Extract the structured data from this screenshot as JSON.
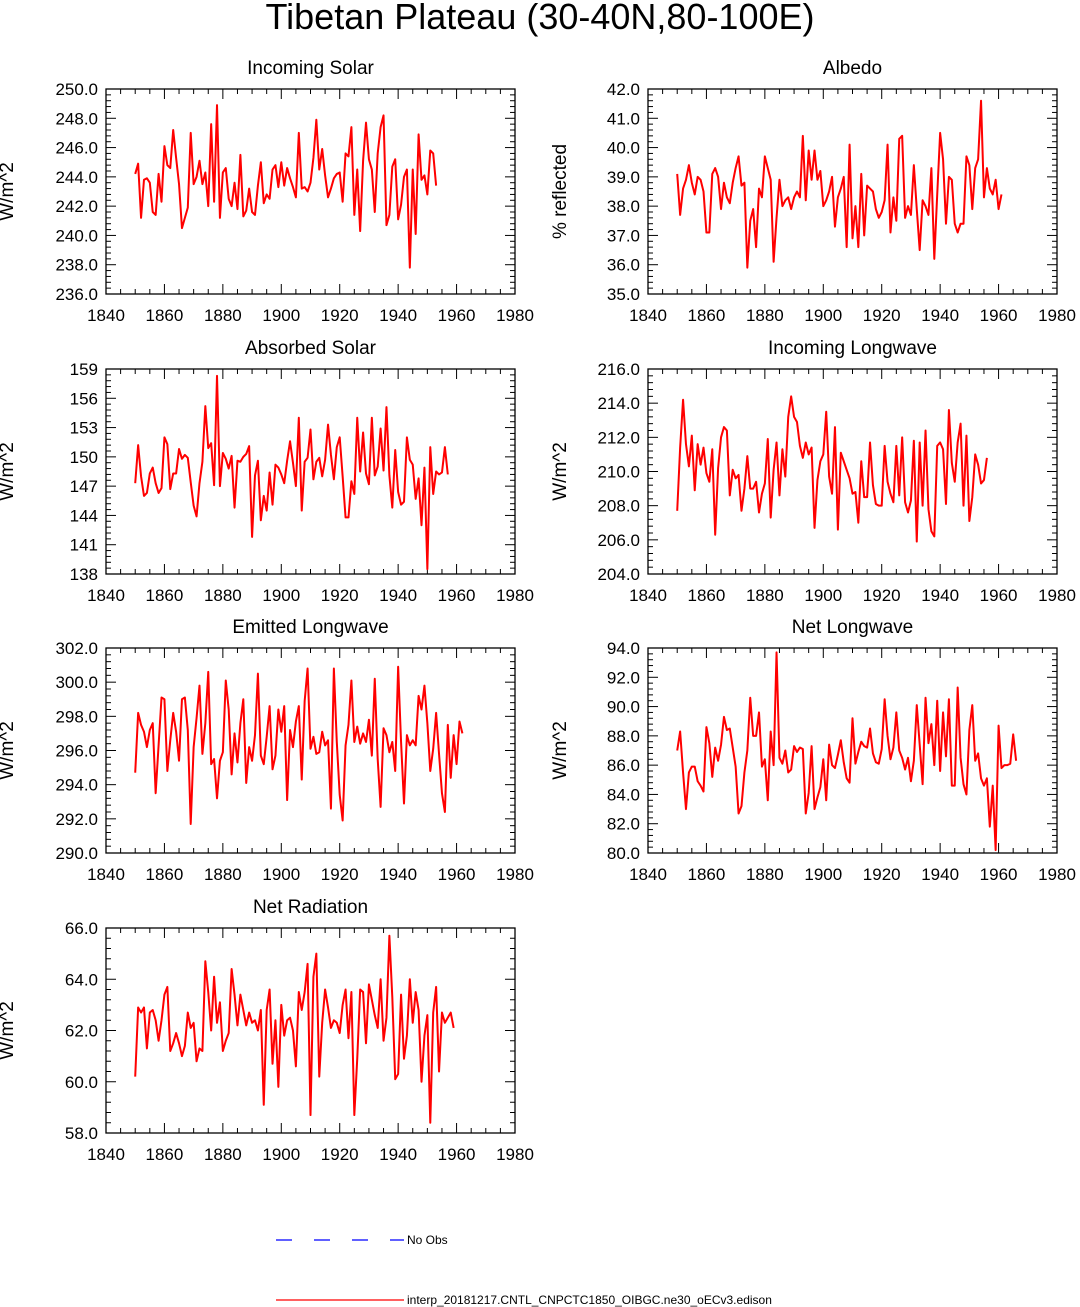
{
  "title": "Tibetan Plateau (30-40N,80-100E)",
  "colors": {
    "model": "#ff0000",
    "obs": "#0000ff"
  },
  "legend": {
    "obs_label": "No Obs",
    "model_label": "interp_20181217.CNTL_CNPCTC1850_OIBGC.ne30_oECv3.edison"
  },
  "chart_data": [
    {
      "type": "line",
      "title": "Incoming Solar",
      "ylabel": "W/m^2",
      "xlim": [
        1840,
        1980
      ],
      "ylim": [
        236,
        250
      ],
      "xticks": [
        1840,
        1860,
        1880,
        1900,
        1920,
        1940,
        1960,
        1980
      ],
      "yticks": [
        236,
        238,
        240,
        242,
        244,
        246,
        248,
        250
      ],
      "ydecimals": 1,
      "x_start": 1850,
      "series": [
        {
          "values": [
            244.2,
            244.9,
            241.2,
            243.8,
            243.9,
            243.6,
            241.6,
            241.4,
            244.2,
            242.3,
            246.1,
            244.8,
            244.6,
            247.2,
            245.3,
            243.5,
            240.5,
            241.2,
            241.9,
            247.0,
            243.5,
            244.0,
            245.1,
            243.5,
            244.3,
            242.0,
            247.6,
            242.3,
            248.9,
            241.2,
            244.3,
            244.6,
            242.5,
            242.0,
            243.6,
            241.8,
            245.5,
            241.3,
            241.7,
            243.2,
            241.6,
            241.4,
            243.4,
            245.0,
            242.2,
            242.8,
            242.5,
            244.5,
            244.8,
            243.3,
            245.0,
            243.4,
            244.6,
            243.9,
            243.3,
            242.6,
            247.0,
            243.2,
            243.3,
            243.0,
            243.6,
            245.3,
            247.9,
            244.5,
            245.9,
            244.1,
            242.6,
            243.2,
            243.9,
            244.2,
            244.3,
            242.3,
            245.6,
            245.4,
            247.4,
            241.4,
            244.5,
            240.3,
            245.1,
            247.7,
            245.2,
            244.5,
            241.6,
            245.6,
            247.4,
            248.2,
            240.7,
            241.4,
            244.7,
            245.2,
            241.1,
            242.1,
            244.0,
            244.5,
            237.8,
            244.5,
            240.1,
            246.9,
            243.8,
            244.1,
            242.8,
            245.8,
            245.6,
            243.4
          ]
        }
      ]
    },
    {
      "type": "line",
      "title": "Albedo",
      "ylabel": "% reflected",
      "xlim": [
        1840,
        1980
      ],
      "ylim": [
        35,
        42
      ],
      "xticks": [
        1840,
        1860,
        1880,
        1900,
        1920,
        1940,
        1960,
        1980
      ],
      "yticks": [
        35,
        36,
        37,
        38,
        39,
        40,
        41,
        42
      ],
      "ydecimals": 1,
      "x_start": 1850,
      "series": [
        {
          "values": [
            39.1,
            37.7,
            38.6,
            38.9,
            39.4,
            38.8,
            38.4,
            39.0,
            38.9,
            38.5,
            37.1,
            37.1,
            39.1,
            39.3,
            39.0,
            37.9,
            38.8,
            38.3,
            38.1,
            38.8,
            39.3,
            39.7,
            38.7,
            38.8,
            35.9,
            37.5,
            37.9,
            36.6,
            38.6,
            38.3,
            39.7,
            39.3,
            38.9,
            36.1,
            37.6,
            38.9,
            38.0,
            38.2,
            38.3,
            37.9,
            38.3,
            38.5,
            38.3,
            40.4,
            38.2,
            39.9,
            38.9,
            39.9,
            38.9,
            39.2,
            38.0,
            38.2,
            38.5,
            39.0,
            37.3,
            38.3,
            38.6,
            39.0,
            36.6,
            40.1,
            36.9,
            38.0,
            36.6,
            39.1,
            37.0,
            38.7,
            38.6,
            38.5,
            37.9,
            37.6,
            37.8,
            38.2,
            40.1,
            37.1,
            38.3,
            37.5,
            40.3,
            40.4,
            37.6,
            38.0,
            37.7,
            39.4,
            37.9,
            36.5,
            38.2,
            38.0,
            37.7,
            39.3,
            36.2,
            38.4,
            40.5,
            39.6,
            37.4,
            39.0,
            38.9,
            37.4,
            37.1,
            37.4,
            37.4,
            39.7,
            39.4,
            37.9,
            39.3,
            39.6,
            41.6,
            38.3,
            39.3,
            38.6,
            38.4,
            38.9,
            37.9,
            38.4
          ]
        }
      ]
    },
    {
      "type": "line",
      "title": "Absorbed Solar",
      "ylabel": "W/m^2",
      "xlim": [
        1840,
        1980
      ],
      "ylim": [
        138,
        159
      ],
      "xticks": [
        1840,
        1860,
        1880,
        1900,
        1920,
        1940,
        1960,
        1980
      ],
      "yticks": [
        138,
        141,
        144,
        147,
        150,
        153,
        156,
        159
      ],
      "ydecimals": 0,
      "x_start": 1850,
      "series": [
        {
          "values": [
            147.3,
            151.2,
            148.0,
            146.0,
            146.3,
            148.3,
            148.9,
            147.3,
            146.3,
            146.8,
            152.0,
            151.3,
            146.7,
            148.3,
            148.3,
            150.8,
            149.8,
            150.2,
            149.9,
            147.4,
            145.0,
            143.9,
            147.3,
            149.5,
            155.2,
            150.9,
            151.4,
            147.1,
            158.3,
            147.0,
            150.4,
            149.8,
            148.8,
            150.1,
            144.8,
            149.6,
            149.5,
            150.0,
            150.3,
            151.1,
            141.8,
            148.1,
            149.6,
            143.5,
            146.0,
            144.5,
            148.4,
            145.1,
            149.2,
            148.9,
            148.2,
            147.3,
            149.6,
            151.6,
            149.4,
            147.0,
            154.0,
            144.5,
            149.5,
            149.9,
            152.8,
            147.7,
            149.5,
            149.9,
            148.0,
            149.7,
            153.3,
            150.2,
            147.7,
            151.0,
            152.0,
            148.0,
            143.8,
            143.8,
            147.5,
            146.2,
            154.0,
            148.5,
            152.5,
            148.3,
            147.2,
            154.0,
            148.1,
            149.0,
            152.9,
            148.6,
            155.1,
            148.1,
            144.8,
            150.7,
            146.4,
            145.1,
            145.4,
            152.0,
            149.7,
            149.2,
            145.7,
            147.8,
            143.0,
            148.9,
            138.5,
            151.0,
            146.2,
            148.5,
            148.2,
            148.4,
            151.0,
            148.2
          ]
        }
      ]
    },
    {
      "type": "line",
      "title": "Incoming Longwave",
      "ylabel": "W/m^2",
      "xlim": [
        1840,
        1980
      ],
      "ylim": [
        204,
        216
      ],
      "xticks": [
        1840,
        1860,
        1880,
        1900,
        1920,
        1940,
        1960,
        1980
      ],
      "yticks": [
        204,
        206,
        208,
        210,
        212,
        214,
        216
      ],
      "ydecimals": 1,
      "x_start": 1850,
      "series": [
        {
          "values": [
            207.7,
            211.4,
            214.2,
            211.6,
            210.3,
            212.1,
            208.9,
            211.6,
            210.4,
            211.4,
            209.9,
            209.4,
            211.3,
            206.3,
            210.2,
            212.0,
            212.6,
            212.4,
            208.6,
            210.1,
            209.6,
            209.8,
            207.7,
            209.0,
            210.9,
            209.0,
            209.0,
            209.4,
            207.6,
            208.7,
            209.3,
            211.9,
            207.3,
            210.1,
            211.7,
            208.6,
            211.3,
            209.7,
            213.2,
            214.4,
            213.2,
            212.9,
            211.5,
            210.8,
            211.7,
            211.0,
            211.4,
            206.7,
            209.5,
            210.6,
            211.0,
            213.5,
            209.7,
            208.7,
            212.6,
            206.6,
            211.1,
            210.6,
            210.1,
            209.6,
            208.7,
            208.8,
            207.0,
            210.6,
            208.5,
            208.5,
            211.7,
            209.2,
            208.1,
            208.0,
            208.0,
            211.5,
            209.4,
            208.7,
            208.2,
            211.5,
            208.6,
            212.0,
            208.2,
            207.6,
            208.3,
            211.8,
            205.9,
            211.7,
            208.0,
            212.4,
            207.8,
            206.5,
            206.2,
            211.5,
            211.7,
            211.3,
            208.1,
            213.6,
            210.5,
            209.4,
            211.7,
            212.8,
            208.0,
            212.1,
            207.1,
            208.5,
            211.0,
            210.4,
            209.3,
            209.5,
            210.8
          ]
        }
      ]
    },
    {
      "type": "line",
      "title": "Emitted Longwave",
      "ylabel": "W/m^2",
      "xlim": [
        1840,
        1980
      ],
      "ylim": [
        290,
        302
      ],
      "xticks": [
        1840,
        1860,
        1880,
        1900,
        1920,
        1940,
        1960,
        1980
      ],
      "yticks": [
        290,
        292,
        294,
        296,
        298,
        300,
        302
      ],
      "ydecimals": 1,
      "x_start": 1850,
      "series": [
        {
          "values": [
            294.7,
            298.2,
            297.5,
            297.1,
            296.2,
            297.2,
            297.6,
            293.5,
            296.3,
            299.1,
            299.0,
            294.8,
            296.6,
            298.2,
            297.1,
            295.4,
            299.0,
            299.1,
            297.2,
            291.7,
            296.2,
            297.9,
            299.8,
            295.8,
            297.6,
            300.6,
            295.2,
            295.5,
            293.2,
            295.4,
            295.9,
            300.1,
            298.4,
            294.6,
            297.0,
            295.3,
            297.6,
            299.0,
            294.1,
            296.2,
            295.4,
            296.9,
            300.5,
            295.7,
            295.2,
            296.8,
            298.6,
            294.9,
            295.7,
            298.4,
            297.1,
            298.6,
            293.1,
            297.2,
            296.2,
            297.7,
            298.6,
            294.3,
            298.9,
            300.8,
            296.1,
            296.8,
            295.8,
            295.9,
            297.1,
            296.3,
            296.6,
            292.6,
            300.8,
            296.5,
            293.4,
            291.9,
            296.3,
            297.5,
            300.1,
            296.5,
            297.4,
            296.4,
            297.0,
            296.5,
            297.8,
            295.7,
            300.2,
            295.5,
            292.7,
            297.3,
            296.9,
            295.9,
            296.5,
            294.8,
            300.9,
            296.5,
            292.9,
            296.9,
            296.3,
            296.6,
            296.3,
            299.2,
            298.4,
            299.8,
            297.6,
            294.8,
            296.1,
            298.2,
            295.8,
            293.5,
            292.4,
            297.5,
            294.4,
            296.9,
            295.2,
            297.7,
            297.0
          ]
        }
      ]
    },
    {
      "type": "line",
      "title": "Net Longwave",
      "ylabel": "W/m^2",
      "xlim": [
        1840,
        1980
      ],
      "ylim": [
        80,
        94
      ],
      "xticks": [
        1840,
        1860,
        1880,
        1900,
        1920,
        1940,
        1960,
        1980
      ],
      "yticks": [
        80,
        82,
        84,
        86,
        88,
        90,
        92,
        94
      ],
      "ydecimals": 1,
      "x_start": 1850,
      "series": [
        {
          "values": [
            87.0,
            88.3,
            85.5,
            83.0,
            85.5,
            85.9,
            85.9,
            84.9,
            84.6,
            84.2,
            88.6,
            87.5,
            85.2,
            87.2,
            86.3,
            87.4,
            89.3,
            88.4,
            88.5,
            87.2,
            85.9,
            82.7,
            83.2,
            85.5,
            87.0,
            90.6,
            88.0,
            88.0,
            89.6,
            85.9,
            86.4,
            83.6,
            88.3,
            86.0,
            93.7,
            86.5,
            86.1,
            87.0,
            85.5,
            85.7,
            87.3,
            86.9,
            87.2,
            87.1,
            82.7,
            84.1,
            87.3,
            83.0,
            83.8,
            84.5,
            86.4,
            83.6,
            87.4,
            86.0,
            85.8,
            86.7,
            87.7,
            86.2,
            85.1,
            84.8,
            89.2,
            86.1,
            86.9,
            87.6,
            87.3,
            87.2,
            88.5,
            86.8,
            86.2,
            86.1,
            87.1,
            90.5,
            88.0,
            86.4,
            87.2,
            89.6,
            87.0,
            86.5,
            85.7,
            86.5,
            84.9,
            86.3,
            90.1,
            87.4,
            84.7,
            90.6,
            87.5,
            88.8,
            86.0,
            90.4,
            85.6,
            89.6,
            86.6,
            90.5,
            84.6,
            84.6,
            91.3,
            86.5,
            84.7,
            84.0,
            88.4,
            90.1,
            86.3,
            86.8,
            85.1,
            84.6,
            85.1,
            81.8,
            84.6,
            80.2,
            88.7,
            85.8,
            86.0,
            86.0,
            86.1,
            88.1,
            86.3
          ]
        }
      ]
    },
    {
      "type": "line",
      "title": "Net Radiation",
      "ylabel": "W/m^2",
      "xlim": [
        1840,
        1980
      ],
      "ylim": [
        58,
        66
      ],
      "xticks": [
        1840,
        1860,
        1880,
        1900,
        1920,
        1940,
        1960,
        1980
      ],
      "yticks": [
        58,
        60,
        62,
        64,
        66
      ],
      "ydecimals": 1,
      "x_start": 1850,
      "series": [
        {
          "values": [
            60.2,
            62.9,
            62.7,
            62.9,
            61.3,
            62.7,
            62.8,
            62.4,
            61.6,
            62.4,
            63.4,
            63.7,
            61.2,
            61.5,
            61.9,
            61.5,
            61.0,
            61.4,
            62.7,
            62.1,
            62.3,
            60.8,
            61.3,
            61.2,
            64.7,
            63.5,
            62.0,
            64.1,
            62.3,
            63.1,
            61.2,
            61.6,
            61.9,
            64.4,
            63.4,
            62.2,
            63.4,
            62.8,
            62.2,
            62.7,
            62.3,
            62.4,
            62.0,
            62.8,
            59.1,
            62.8,
            63.6,
            60.7,
            62.4,
            59.8,
            63.0,
            61.8,
            62.4,
            62.5,
            62.0,
            60.6,
            63.5,
            62.8,
            63.5,
            64.6,
            58.7,
            64.1,
            65.0,
            60.2,
            62.3,
            63.6,
            62.9,
            62.1,
            62.4,
            62.3,
            61.9,
            63.0,
            63.6,
            61.7,
            63.5,
            58.7,
            60.9,
            63.6,
            63.5,
            61.5,
            63.8,
            63.2,
            62.6,
            62.1,
            64.0,
            61.6,
            62.5,
            65.7,
            63.3,
            60.1,
            60.3,
            63.4,
            60.9,
            61.8,
            64.0,
            62.3,
            63.5,
            62.8,
            60.0,
            61.8,
            62.6,
            58.4,
            62.7,
            63.7,
            60.4,
            62.7,
            62.3,
            62.5,
            62.7,
            62.1
          ]
        }
      ]
    }
  ]
}
